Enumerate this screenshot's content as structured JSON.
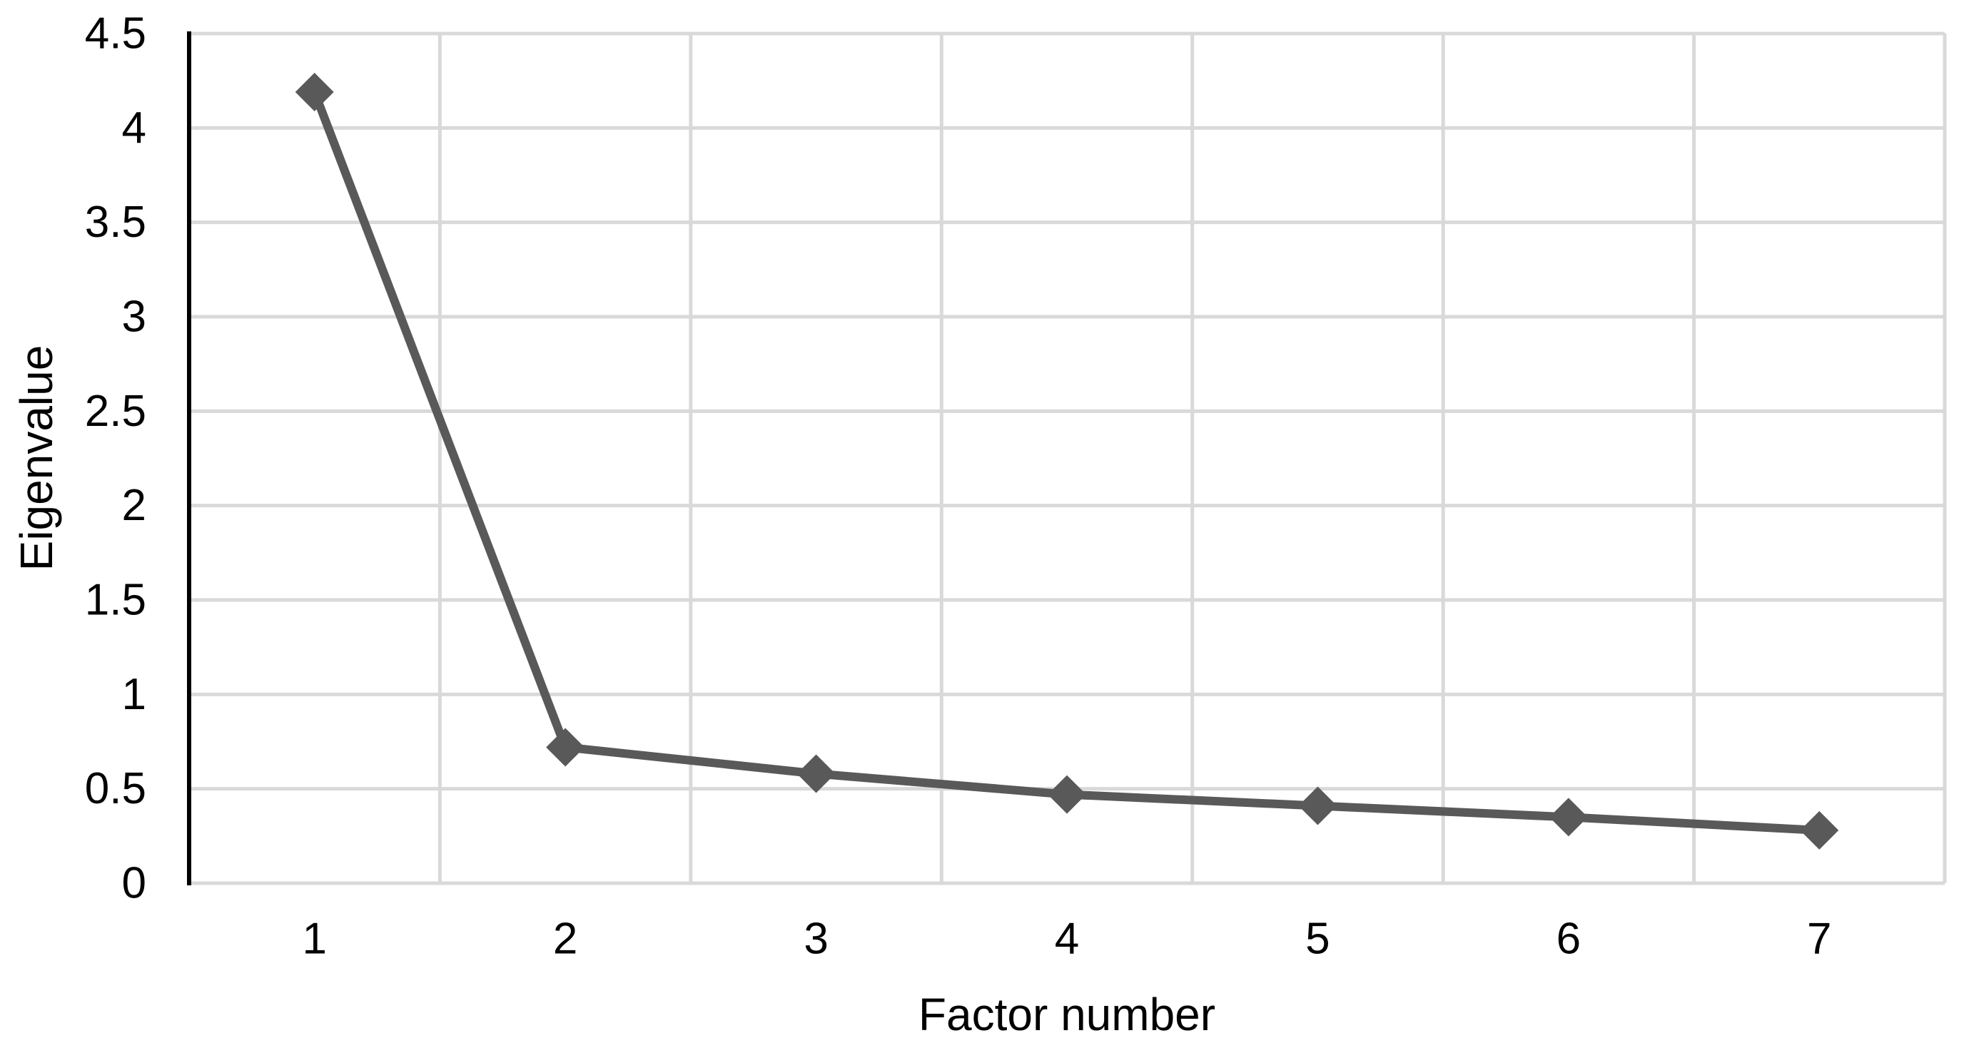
{
  "chart_data": {
    "type": "line",
    "title": "",
    "xlabel": "Factor number",
    "ylabel": "Eigenvalue",
    "categories": [
      "1",
      "2",
      "3",
      "4",
      "5",
      "6",
      "7"
    ],
    "series": [
      {
        "name": "Eigenvalue",
        "values": [
          4.19,
          0.72,
          0.58,
          0.47,
          0.41,
          0.35,
          0.28
        ]
      }
    ],
    "ylim": [
      0,
      4.5
    ],
    "ytick_step": 0.5,
    "y_tick_labels": [
      "0",
      "0.5",
      "1",
      "1.5",
      "2",
      "2.5",
      "3",
      "3.5",
      "4",
      "4.5"
    ],
    "grid": "on",
    "legend_position": "none",
    "marker": "diamond",
    "colors": {
      "series": "#595959",
      "gridline": "#d9d9d9",
      "axis": "#000000",
      "text": "#000000",
      "background": "#ffffff"
    }
  }
}
